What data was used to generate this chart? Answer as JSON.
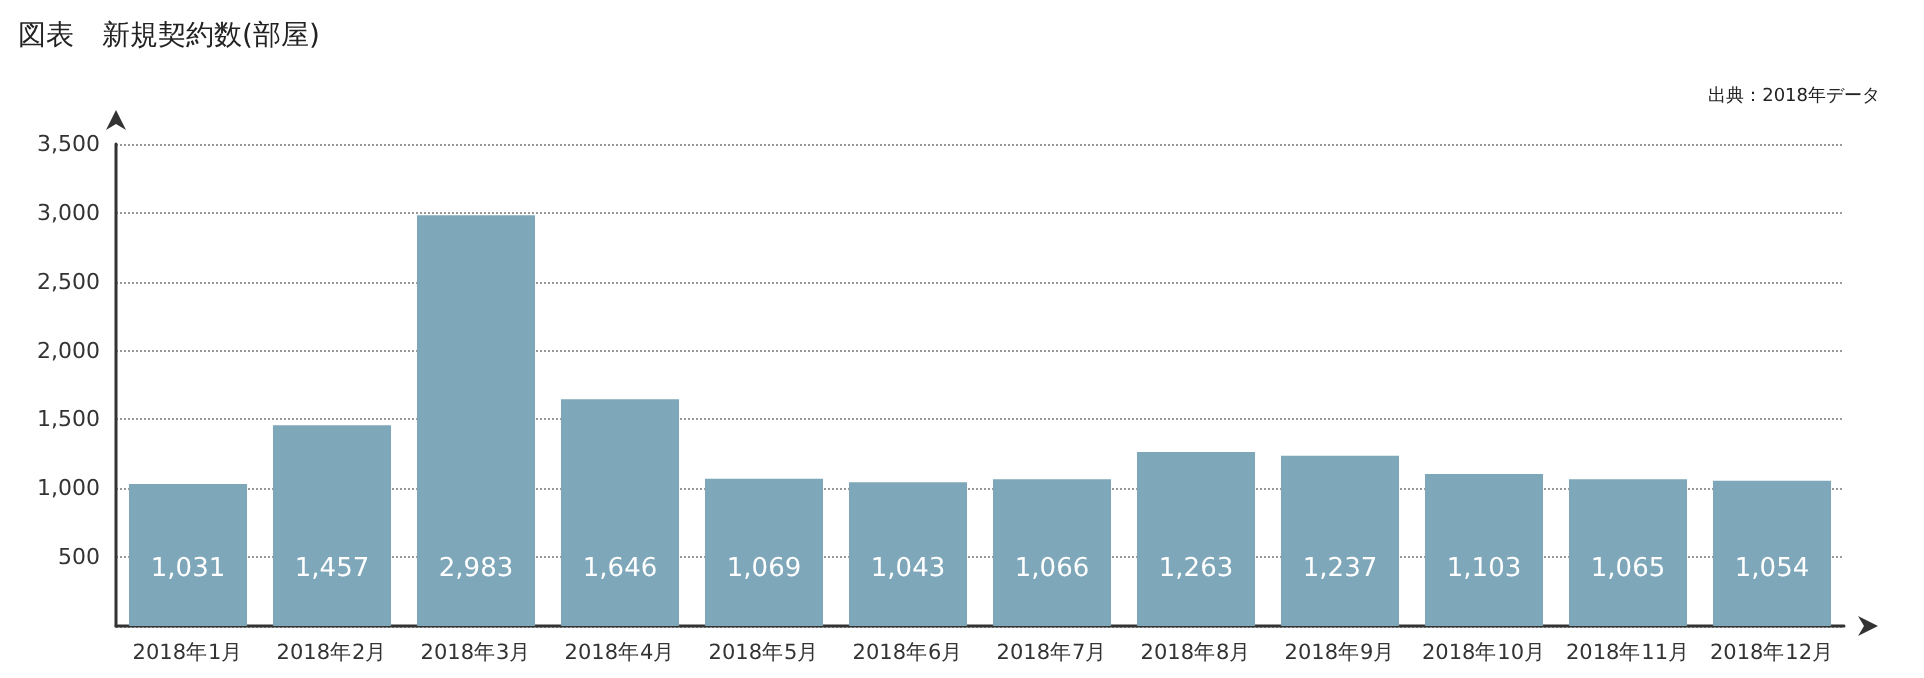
{
  "chart_data": {
    "type": "bar",
    "title": "図表　新規契約数(部屋)",
    "annotations": [
      "出典：2018年データ"
    ],
    "categories": [
      "2018年1月",
      "2018年2月",
      "2018年3月",
      "2018年4月",
      "2018年5月",
      "2018年6月",
      "2018年7月",
      "2018年8月",
      "2018年9月",
      "2018年10月",
      "2018年11月",
      "2018年12月"
    ],
    "values": [
      1031,
      1457,
      2983,
      1646,
      1069,
      1043,
      1066,
      1263,
      1237,
      1103,
      1065,
      1054
    ],
    "value_labels": [
      "1,031",
      "1,457",
      "2,983",
      "1,646",
      "1,069",
      "1,043",
      "1,066",
      "1,263",
      "1,237",
      "1,103",
      "1,065",
      "1,054"
    ],
    "color": "#7ea7ba",
    "ylim": [
      0,
      3500
    ],
    "yticks": [
      {
        "value": 0,
        "label": null
      },
      {
        "value": 500,
        "label": "500"
      },
      {
        "value": 1000,
        "label": "1,000"
      },
      {
        "value": 1500,
        "label": "1,500"
      },
      {
        "value": 2000,
        "label": "2,000"
      },
      {
        "value": 2500,
        "label": "2,500"
      },
      {
        "value": 3000,
        "label": "3,000"
      },
      {
        "value": 3500,
        "label": "3,500"
      }
    ],
    "grid": "y",
    "line_style": "dotted"
  }
}
